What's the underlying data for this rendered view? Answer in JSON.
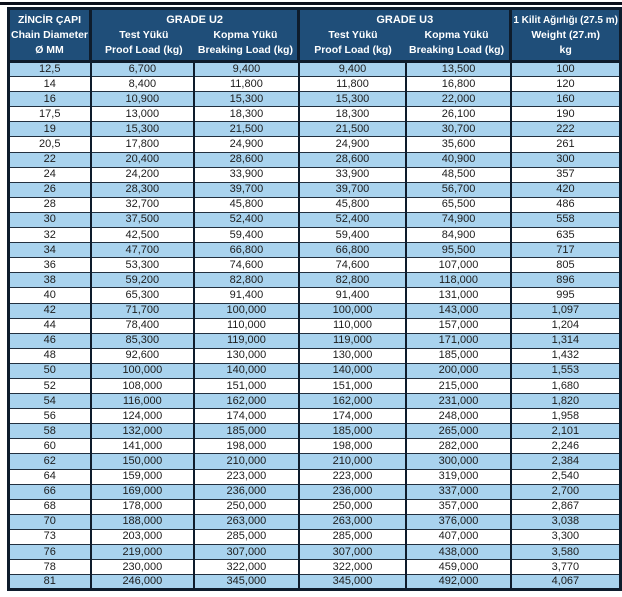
{
  "colors": {
    "header_bg": "#1F4E79",
    "stripe_bg": "#A9D3EE",
    "grid_dark": "#0E1C2C",
    "row_line": "#22303F",
    "body_text": "#1C1C1C",
    "header_text": "#FFFFFF"
  },
  "table": {
    "header": {
      "diameter": {
        "line1": "ZİNCİR ÇAPI",
        "line2": "Chain  Diameter",
        "line3": "Ø MM"
      },
      "grade_u2": {
        "title": "GRADE U2",
        "sub1_tr": "Test Yükü",
        "sub1_en": "Proof Load (kg)",
        "sub2_tr": "Kopma Yükü",
        "sub2_en": "Breaking Load (kg)"
      },
      "grade_u3": {
        "title": "GRADE U3",
        "sub1_tr": "Test Yükü",
        "sub1_en": "Proof Load (kg)",
        "sub2_tr": "Kopma Yükü",
        "sub2_en": "Breaking Load (kg)"
      },
      "weight": {
        "line1": "1 Kilit Ağırlığı (27.5 m)",
        "line2": "Weight (27.m)",
        "line3": "kg"
      }
    },
    "rows": [
      [
        "12,5",
        "6,700",
        "9,400",
        "9,400",
        "13,500",
        "100"
      ],
      [
        "14",
        "8,400",
        "11,800",
        "11,800",
        "16,800",
        "120"
      ],
      [
        "16",
        "10,900",
        "15,300",
        "15,300",
        "22,000",
        "160"
      ],
      [
        "17,5",
        "13,000",
        "18,300",
        "18,300",
        "26,100",
        "190"
      ],
      [
        "19",
        "15,300",
        "21,500",
        "21,500",
        "30,700",
        "222"
      ],
      [
        "20,5",
        "17,800",
        "24,900",
        "24,900",
        "35,600",
        "261"
      ],
      [
        "22",
        "20,400",
        "28,600",
        "28,600",
        "40,900",
        "300"
      ],
      [
        "24",
        "24,200",
        "33,900",
        "33,900",
        "48,500",
        "357"
      ],
      [
        "26",
        "28,300",
        "39,700",
        "39,700",
        "56,700",
        "420"
      ],
      [
        "28",
        "32,700",
        "45,800",
        "45,800",
        "65,500",
        "486"
      ],
      [
        "30",
        "37,500",
        "52,400",
        "52,400",
        "74,900",
        "558"
      ],
      [
        "32",
        "42,500",
        "59,400",
        "59,400",
        "84,900",
        "635"
      ],
      [
        "34",
        "47,700",
        "66,800",
        "66,800",
        "95,500",
        "717"
      ],
      [
        "36",
        "53,300",
        "74,600",
        "74,600",
        "107,000",
        "805"
      ],
      [
        "38",
        "59,200",
        "82,800",
        "82,800",
        "118,000",
        "896"
      ],
      [
        "40",
        "65,300",
        "91,400",
        "91,400",
        "131,000",
        "995"
      ],
      [
        "42",
        "71,700",
        "100,000",
        "100,000",
        "143,000",
        "1,097"
      ],
      [
        "44",
        "78,400",
        "110,000",
        "110,000",
        "157,000",
        "1,204"
      ],
      [
        "46",
        "85,300",
        "119,000",
        "119,000",
        "171,000",
        "1,314"
      ],
      [
        "48",
        "92,600",
        "130,000",
        "130,000",
        "185,000",
        "1,432"
      ],
      [
        "50",
        "100,000",
        "140,000",
        "140,000",
        "200,000",
        "1,553"
      ],
      [
        "52",
        "108,000",
        "151,000",
        "151,000",
        "215,000",
        "1,680"
      ],
      [
        "54",
        "116,000",
        "162,000",
        "162,000",
        "231,000",
        "1,820"
      ],
      [
        "56",
        "124,000",
        "174,000",
        "174,000",
        "248,000",
        "1,958"
      ],
      [
        "58",
        "132,000",
        "185,000",
        "185,000",
        "265,000",
        "2,101"
      ],
      [
        "60",
        "141,000",
        "198,000",
        "198,000",
        "282,000",
        "2,246"
      ],
      [
        "62",
        "150,000",
        "210,000",
        "210,000",
        "300,000",
        "2,384"
      ],
      [
        "64",
        "159,000",
        "223,000",
        "223,000",
        "319,000",
        "2,540"
      ],
      [
        "66",
        "169,000",
        "236,000",
        "236,000",
        "337,000",
        "2,700"
      ],
      [
        "68",
        "178,000",
        "250,000",
        "250,000",
        "357,000",
        "2,867"
      ],
      [
        "70",
        "188,000",
        "263,000",
        "263,000",
        "376,000",
        "3,038"
      ],
      [
        "73",
        "203,000",
        "285,000",
        "285,000",
        "407,000",
        "3,300"
      ],
      [
        "76",
        "219,000",
        "307,000",
        "307,000",
        "438,000",
        "3,580"
      ],
      [
        "78",
        "230,000",
        "322,000",
        "322,000",
        "459,000",
        "3,770"
      ],
      [
        "81",
        "246,000",
        "345,000",
        "345,000",
        "492,000",
        "4,067"
      ]
    ],
    "column_keys": [
      "diameter-mm",
      "u2-proof-load",
      "u2-breaking-load",
      "u3-proof-load",
      "u3-breaking-load",
      "weight-kg"
    ]
  }
}
